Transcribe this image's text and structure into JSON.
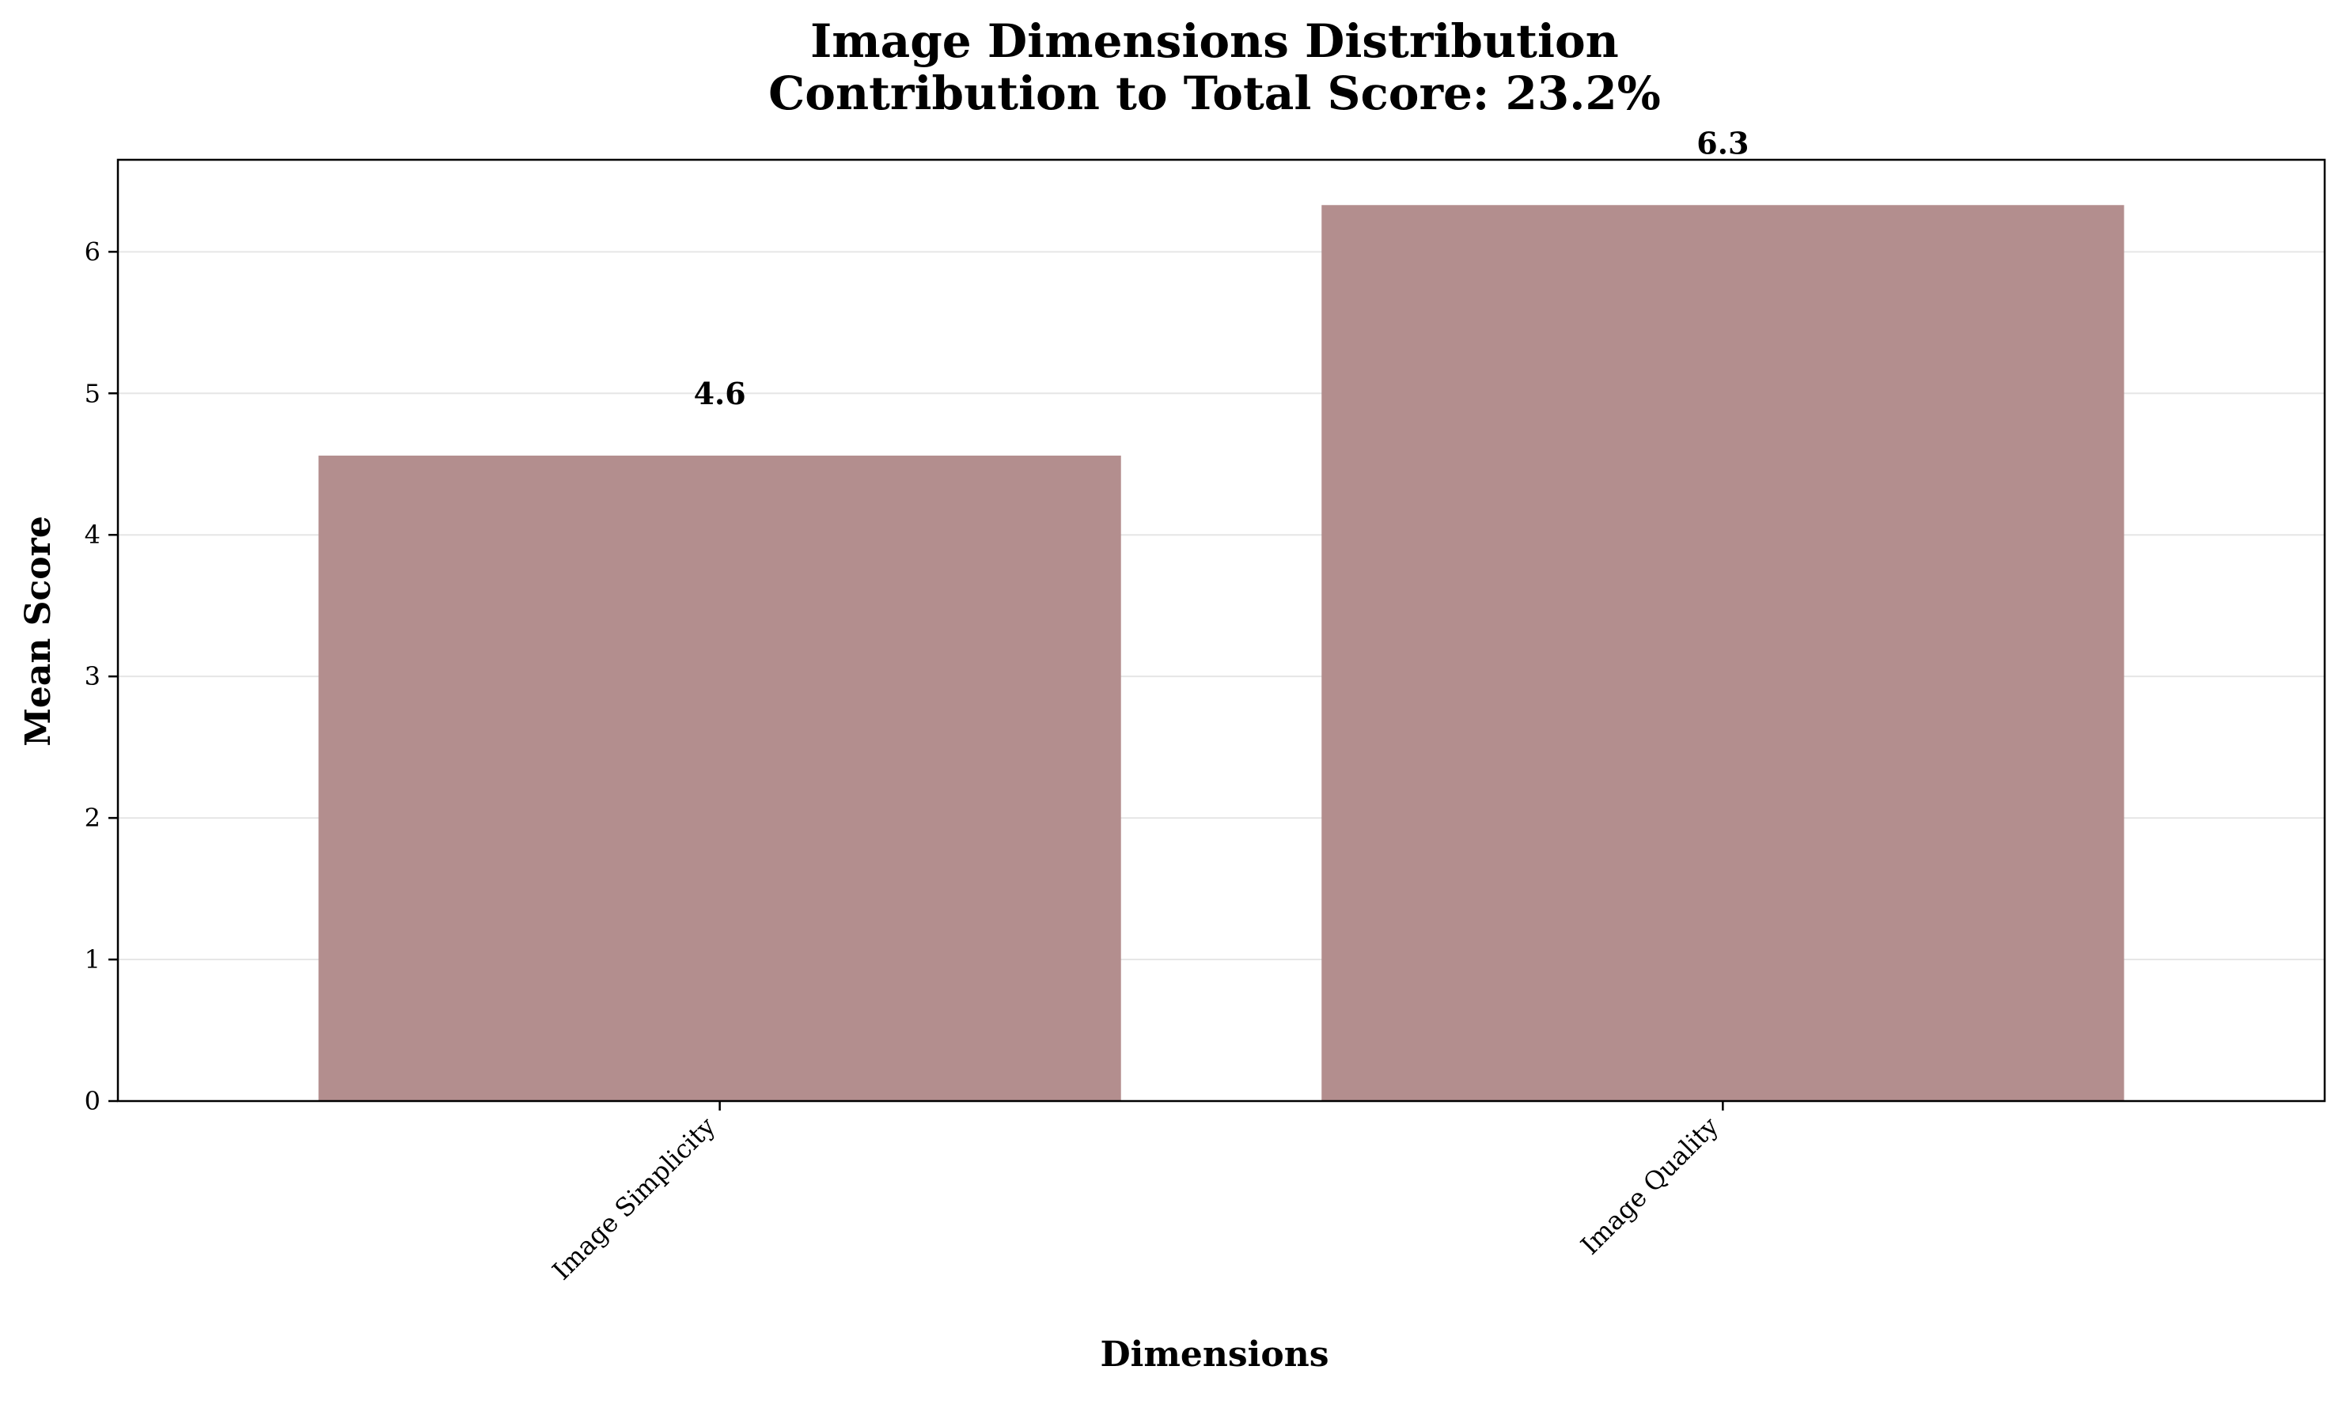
{
  "chart_data": {
    "type": "bar",
    "title": "Image Dimensions Distribution",
    "subtitle": "Contribution to Total Score: 23.2%",
    "xlabel": "Dimensions",
    "ylabel": "Mean Score",
    "categories": [
      "Image Simplicity",
      "Image Quality"
    ],
    "values": [
      4.56,
      6.33
    ],
    "data_labels": [
      "4.6",
      "6.3"
    ],
    "ylim": [
      0,
      6.65
    ],
    "yticks": [
      0,
      1,
      2,
      3,
      4,
      5,
      6
    ],
    "ytick_labels": [
      "0",
      "1",
      "2",
      "3",
      "4",
      "5",
      "6"
    ],
    "grid": "y",
    "legend": "none",
    "bar_color": "#b38e8e",
    "grid_color": "#e6e6e6"
  }
}
